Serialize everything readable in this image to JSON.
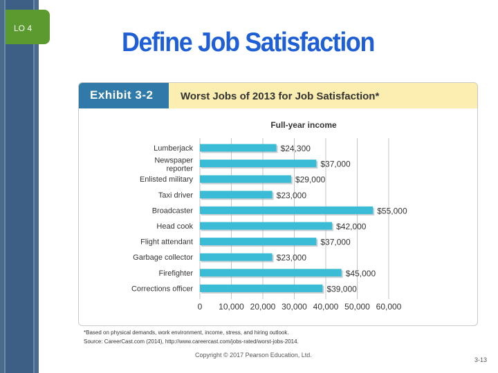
{
  "slide": {
    "lo_label": "LO 4",
    "title": "Define Job Satisfaction",
    "copyright": "Copyright © 2017 Pearson Education, Ltd.",
    "page_number": "3-13"
  },
  "exhibit": {
    "tab_label": "Exhibit 3-2",
    "title": "Worst Jobs of 2013 for Job Satisfaction*",
    "footnote": "*Based on physical demands, work environment, income, stress, and hiring outlook.",
    "source": "Source: CareerCast.com (2014), http://www.careercast.com/jobs-rated/worst-jobs-2014."
  },
  "colors": {
    "bar": "#3bbcd6",
    "bar_shadow": "#9aa7ad",
    "title": "#1f5fd6",
    "tab": "#2f7aa8",
    "header": "#fbeeb0",
    "lo_tab": "#5a9a2e"
  },
  "chart_data": {
    "type": "bar",
    "orientation": "horizontal",
    "title": "Full-year income",
    "categories": [
      "Lumberjack",
      "Newspaper reporter",
      "Enlisted military",
      "Taxi driver",
      "Broadcaster",
      "Head cook",
      "Flight attendant",
      "Garbage collector",
      "Firefighter",
      "Corrections officer"
    ],
    "category_lines": [
      [
        "Lumberjack"
      ],
      [
        "Newspaper",
        "reporter"
      ],
      [
        "Enlisted military"
      ],
      [
        "Taxi driver"
      ],
      [
        "Broadcaster"
      ],
      [
        "Head cook"
      ],
      [
        "Flight attendant"
      ],
      [
        "Garbage collector"
      ],
      [
        "Firefighter"
      ],
      [
        "Corrections officer"
      ]
    ],
    "values": [
      24300,
      37000,
      29000,
      23000,
      55000,
      42000,
      37000,
      23000,
      45000,
      39000
    ],
    "value_labels": [
      "$24,300",
      "$37,000",
      "$29,000",
      "$23,000",
      "$55,000",
      "$42,000",
      "$37,000",
      "$23,000",
      "$45,000",
      "$39,000"
    ],
    "xlim": [
      0,
      60000
    ],
    "xticks": [
      0,
      10000,
      20000,
      30000,
      40000,
      50000,
      60000
    ],
    "xtick_labels": [
      "0",
      "10,000",
      "20,000",
      "30,000",
      "40,000",
      "50,000",
      "60,000"
    ]
  }
}
